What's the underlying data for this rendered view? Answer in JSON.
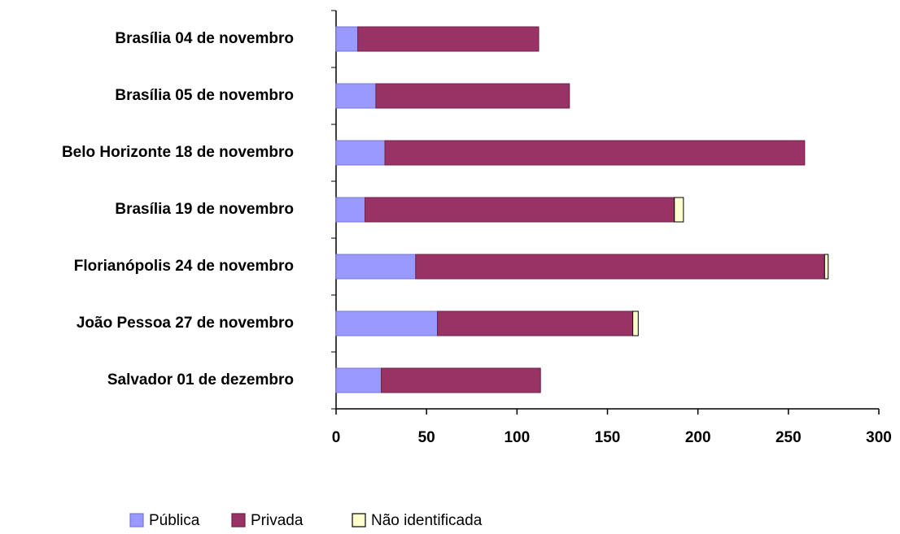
{
  "chart_data": {
    "type": "stacked_barh",
    "categories": [
      "Brasília 04 de novembro",
      "Brasília 05 de novembro",
      "Belo Horizonte 18 de novembro",
      "Brasília 19 de novembro",
      "Florianópolis 24 de novembro",
      "João Pessoa 27 de novembro",
      "Salvador 01 de dezembro"
    ],
    "series": [
      {
        "name": "Pública",
        "color": "#9999ff",
        "values": [
          12,
          22,
          27,
          16,
          44,
          56,
          25
        ]
      },
      {
        "name": "Privada",
        "color": "#993366",
        "values": [
          100,
          107,
          232,
          171,
          226,
          108,
          88
        ]
      },
      {
        "name": "Não identificada",
        "color": "#ffffcc",
        "values": [
          null,
          null,
          null,
          5,
          2,
          3,
          null
        ]
      }
    ],
    "xlim": [
      0,
      300
    ],
    "xticks": [
      0,
      50,
      100,
      150,
      200,
      250,
      300
    ],
    "legend": "bottom"
  }
}
